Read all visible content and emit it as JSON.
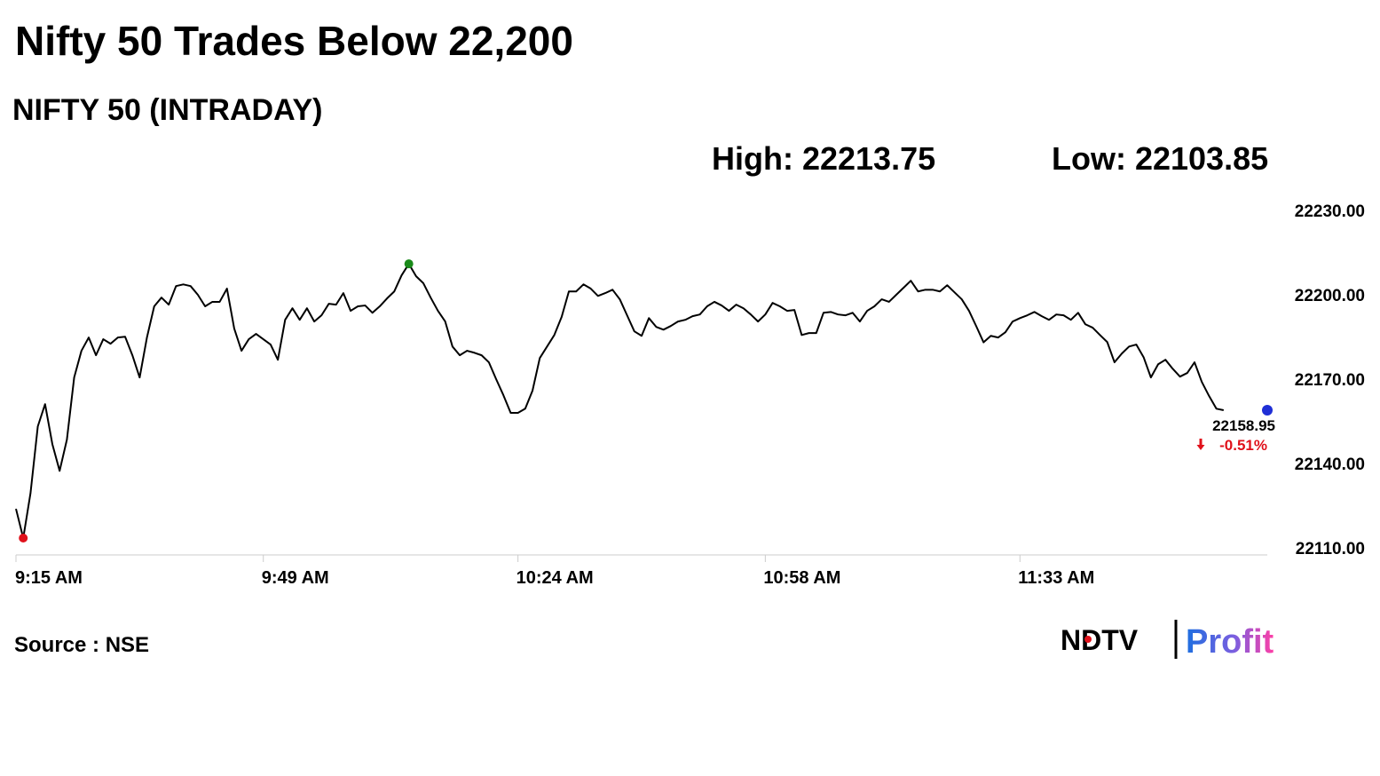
{
  "chart_data": {
    "type": "line",
    "title": "Nifty 50 Trades Below 22,200",
    "subtitle": "NIFTY 50 (INTRADAY)",
    "high_text": "High: 22213.75",
    "low_text": "Low: 22103.85",
    "change": "-0.51%",
    "source": "Source : NSE",
    "brand": {
      "name": "NDTV",
      "product": "Profit"
    },
    "color": "#000000",
    "low_color": "#e0111b",
    "high_color": "#1a8a1a",
    "last_color": "#1f2fd6",
    "change_color": "#e0111b",
    "categories": [
      "9:15 AM",
      null,
      null,
      null,
      null,
      null,
      null,
      null,
      null,
      null,
      null,
      null,
      null,
      null,
      null,
      null,
      null,
      null,
      null,
      null,
      null,
      null,
      null,
      null,
      null,
      null,
      null,
      null,
      null,
      null,
      null,
      null,
      null,
      null,
      "9:49 AM",
      null,
      null,
      null,
      null,
      null,
      null,
      null,
      null,
      null,
      null,
      null,
      null,
      null,
      null,
      null,
      null,
      null,
      null,
      null,
      null,
      null,
      null,
      null,
      null,
      null,
      null,
      null,
      null,
      null,
      null,
      null,
      null,
      null,
      null,
      "10:24 AM",
      null,
      null,
      null,
      null,
      null,
      null,
      null,
      null,
      null,
      null,
      null,
      null,
      null,
      null,
      null,
      null,
      null,
      null,
      null,
      null,
      null,
      null,
      null,
      null,
      null,
      null,
      null,
      null,
      null,
      null,
      null,
      null,
      null,
      "10:58 AM",
      null,
      null,
      null,
      null,
      null,
      null,
      null,
      null,
      null,
      null,
      null,
      null,
      null,
      null,
      null,
      null,
      null,
      null,
      null,
      null,
      null,
      null,
      null,
      null,
      null,
      null,
      null,
      null,
      null,
      null,
      null,
      null,
      null,
      null,
      "11:33 AM",
      null,
      null,
      null,
      null,
      null,
      null,
      null,
      null,
      null,
      null,
      null,
      null,
      null,
      null,
      null,
      null,
      null,
      null,
      null,
      null,
      null,
      null,
      null,
      null,
      null,
      null,
      null,
      null,
      null,
      null,
      null,
      null,
      null,
      null
    ],
    "values": [
      22123.9,
      22113.5,
      22129.5,
      22153.2,
      22161.1,
      22146.9,
      22137.4,
      22148.5,
      22170.6,
      22180.1,
      22184.8,
      22178.5,
      22184.2,
      22182.6,
      22184.8,
      22185.1,
      22178.5,
      22170.6,
      22184.8,
      22195.9,
      22199,
      22196.5,
      22203.1,
      22203.7,
      22203.1,
      22200,
      22195.9,
      22197.5,
      22197.5,
      22202.2,
      22188,
      22180.1,
      22184.2,
      22186.1,
      22184.2,
      22182.3,
      22176.9,
      22191.1,
      22195.2,
      22191.1,
      22195.2,
      22190.5,
      22192.7,
      22196.8,
      22196.5,
      22200.6,
      22194.3,
      22195.9,
      22196.2,
      22193.6,
      22195.9,
      22198.7,
      22201.2,
      22206.9,
      22211,
      22206.6,
      22204.1,
      22199,
      22194.3,
      22190.5,
      22181.6,
      22178.5,
      22180.1,
      22179.4,
      22178.5,
      22176,
      22170,
      22164.3,
      22158,
      22158,
      22159.5,
      22165.9,
      22177.5,
      22181.6,
      22185.7,
      22192.1,
      22201.2,
      22201.2,
      22203.7,
      22202.2,
      22199.6,
      22200.6,
      22201.8,
      22198.4,
      22192.7,
      22187,
      22185.4,
      22191.7,
      22188.6,
      22187.6,
      22188.9,
      22190.5,
      22191.1,
      22192.4,
      22193,
      22195.9,
      22197.5,
      22196.2,
      22194.3,
      22196.5,
      22195.2,
      22193,
      22190.5,
      22193,
      22197.1,
      22195.9,
      22194.3,
      22194.6,
      22185.7,
      22186.4,
      22186.4,
      22193.6,
      22193.9,
      22193,
      22192.7,
      22193.6,
      22190.5,
      22194.3,
      22195.9,
      22198.4,
      22197.5,
      22200,
      22202.5,
      22205,
      22201.2,
      22201.8,
      22201.8,
      22201.2,
      22203.4,
      22200.9,
      22198.4,
      22194.3,
      22188.8,
      22183.1,
      22185.4,
      22184.8,
      22186.7,
      22190.5,
      22191.7,
      22192.7,
      22193.9,
      22192.4,
      22191.1,
      22193,
      22192.7,
      22191.1,
      22193.6,
      22189.5,
      22188.3,
      22185.7,
      22183.2,
      22176,
      22179.1,
      22181.6,
      22182.3,
      22177.8,
      22170.6,
      22175.3,
      22176.9,
      22173.7,
      22170.9,
      22172.2,
      22176,
      22169,
      22164,
      22159.5,
      22158.95,
      null,
      null,
      null,
      null,
      null,
      null
    ],
    "ylim": [
      22107.5,
      22230
    ],
    "yticks": [
      {
        "value": 22110,
        "label": "22110.00"
      },
      {
        "value": 22140,
        "label": "22140.00"
      },
      {
        "value": 22170,
        "label": "22170.00"
      },
      {
        "value": 22200,
        "label": "22200.00"
      },
      {
        "value": 22230,
        "label": "22230.00"
      }
    ],
    "grid": false
  }
}
